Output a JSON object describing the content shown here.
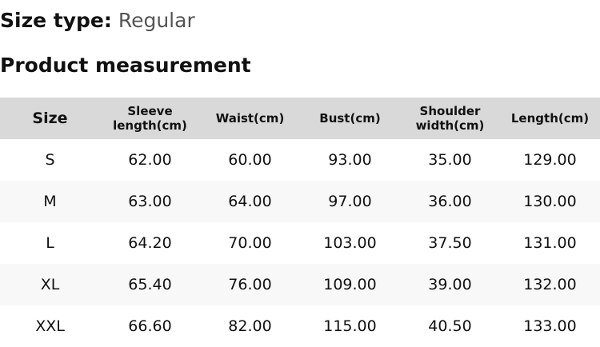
{
  "size_type": {
    "label": "Size type:",
    "value": "Regular"
  },
  "title": "Product measurement",
  "table": {
    "headers": [
      "Size",
      "Sleeve length(cm)",
      "Waist(cm)",
      "Bust(cm)",
      "Shoulder width(cm)",
      "Length(cm)"
    ],
    "rows": [
      [
        "S",
        "62.00",
        "60.00",
        "93.00",
        "35.00",
        "129.00"
      ],
      [
        "M",
        "63.00",
        "64.00",
        "97.00",
        "36.00",
        "130.00"
      ],
      [
        "L",
        "64.20",
        "70.00",
        "103.00",
        "37.50",
        "131.00"
      ],
      [
        "XL",
        "65.40",
        "76.00",
        "109.00",
        "39.00",
        "132.00"
      ],
      [
        "XXL",
        "66.60",
        "82.00",
        "115.00",
        "40.50",
        "133.00"
      ]
    ]
  },
  "colors": {
    "header_bg": "#d9d9d9",
    "alt_row_bg": "#f8f8f8",
    "value_text": "#555555"
  }
}
